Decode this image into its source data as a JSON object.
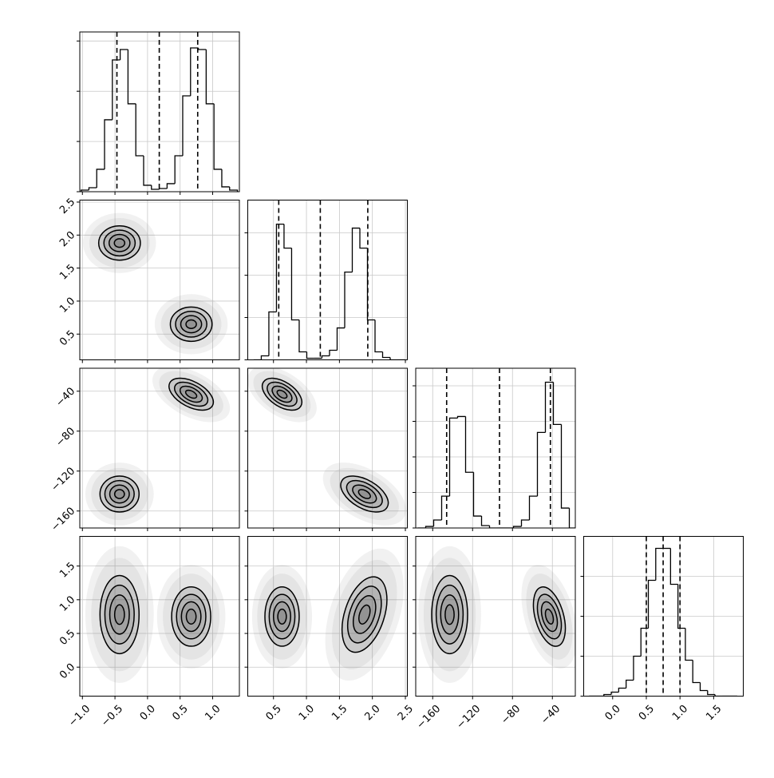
{
  "chart_data": {
    "type": "corner",
    "grid": true,
    "sigma_levels": [
      0.5,
      1,
      1.5,
      2
    ],
    "params": [
      {
        "lim": [
          -1.04,
          1.41
        ],
        "ticks": [
          {
            "value": -1,
            "label": "−1.0"
          },
          {
            "value": -0.5,
            "label": "−0.5"
          },
          {
            "value": 0,
            "label": "0.0"
          },
          0.5,
          {
            "value": 1,
            "label": "1.0"
          }
        ],
        "quantiles": [
          -0.47,
          0.18,
          0.77
        ],
        "hist": {
          "bins": [
            -1.02,
            -0.9,
            -0.78,
            -0.66,
            -0.54,
            -0.42,
            -0.3,
            -0.18,
            -0.06,
            0.06,
            0.18,
            0.3,
            0.42,
            0.54,
            0.66,
            0.78,
            0.9,
            1.02,
            1.14,
            1.26,
            1.38
          ],
          "counts": [
            16,
            40,
            223,
            716,
            1312,
            1415,
            875,
            358,
            64,
            24,
            32,
            80,
            358,
            954,
            1431,
            1415,
            875,
            223,
            48,
            16
          ],
          "ylim": [
            0,
            1590
          ],
          "yticks": [
            0,
            500,
            1000,
            1500
          ]
        }
      },
      {
        "lim": [
          0.11,
          2.53
        ],
        "ticks": [
          0.5,
          {
            "value": 1,
            "label": "1.0"
          },
          1.5,
          {
            "value": 2,
            "label": "2.0"
          },
          2.5
        ],
        "quantiles": [
          0.58,
          1.21,
          1.93
        ],
        "hist": {
          "bins": [
            0.2,
            0.315,
            0.43,
            0.545,
            0.66,
            0.775,
            0.89,
            1.005,
            1.12,
            1.235,
            1.35,
            1.465,
            1.58,
            1.695,
            1.81,
            1.925,
            2.04,
            2.155,
            2.27,
            2.385,
            2.5
          ],
          "counts": [
            0,
            47,
            566,
            1603,
            1320,
            472,
            94,
            19,
            19,
            47,
            113,
            377,
            1037,
            1556,
            1320,
            472,
            94,
            28,
            0,
            0
          ],
          "ylim": [
            0,
            1887
          ],
          "yticks": [
            0,
            500,
            1000,
            1500
          ]
        }
      },
      {
        "lim": [
          -177,
          -17
        ],
        "ticks": [
          {
            "value": -160,
            "label": "−160"
          },
          {
            "value": -120,
            "label": "−120"
          },
          {
            "value": -80,
            "label": "−80"
          },
          {
            "value": -40,
            "label": "−40"
          }
        ],
        "quantiles": [
          -146,
          -93,
          -42
        ],
        "hist": {
          "bins": [
            -175,
            -167,
            -159,
            -151,
            -143,
            -135,
            -127,
            -119,
            -111,
            -103,
            -95,
            -87,
            -79,
            -71,
            -63,
            -55,
            -47,
            -39,
            -31,
            -23,
            -15
          ],
          "counts": [
            0,
            22,
            112,
            448,
            1546,
            1568,
            784,
            168,
            34,
            0,
            0,
            0,
            22,
            112,
            448,
            1344,
            2050,
            1456,
            280,
            0
          ],
          "ylim": [
            0,
            2247
          ],
          "yticks": [
            0,
            500,
            1000,
            1500,
            2000
          ]
        }
      },
      {
        "lim": [
          -0.43,
          1.94
        ],
        "ticks": [
          {
            "value": 0,
            "label": "0.0"
          },
          0.5,
          {
            "value": 1,
            "label": "1.0"
          },
          1.5
        ],
        "quantiles": [
          0.5,
          0.75,
          1.0
        ],
        "hist": {
          "bins": [
            -0.35,
            -0.24,
            -0.13,
            -0.02,
            0.09,
            0.2,
            0.31,
            0.42,
            0.53,
            0.64,
            0.75,
            0.86,
            0.97,
            1.08,
            1.19,
            1.3,
            1.41,
            1.52,
            1.63,
            1.74,
            1.85
          ],
          "counts": [
            0,
            0,
            20,
            50,
            100,
            200,
            500,
            850,
            1450,
            1850,
            1850,
            1400,
            850,
            450,
            170,
            70,
            20,
            0,
            0,
            0
          ],
          "ylim": [
            0,
            2000
          ],
          "yticks": [
            0,
            500,
            1000,
            1500
          ]
        }
      }
    ],
    "panels": [
      {
        "x": 0,
        "y": 1,
        "blobs": [
          {
            "x": -0.43,
            "y": 1.88,
            "sx": 0.16,
            "sy": 0.13,
            "rho": 0
          },
          {
            "x": 0.67,
            "y": 0.65,
            "sx": 0.16,
            "sy": 0.13,
            "rho": 0
          }
        ]
      },
      {
        "x": 0,
        "y": 2,
        "blobs": [
          {
            "x": -0.43,
            "y": -143,
            "sx": 0.15,
            "sy": 9,
            "rho": 0
          },
          {
            "x": 0.67,
            "y": -43,
            "sx": 0.17,
            "sy": 8,
            "rho": -0.5
          }
        ]
      },
      {
        "x": 1,
        "y": 2,
        "blobs": [
          {
            "x": 0.63,
            "y": -43,
            "sx": 0.15,
            "sy": 8,
            "rho": -0.5
          },
          {
            "x": 1.88,
            "y": -143,
            "sx": 0.18,
            "sy": 9,
            "rho": -0.5
          }
        ]
      },
      {
        "x": 0,
        "y": 3,
        "blobs": [
          {
            "x": -0.43,
            "y": 0.78,
            "sx": 0.15,
            "sy": 0.29,
            "rho": 0
          },
          {
            "x": 0.67,
            "y": 0.75,
            "sx": 0.15,
            "sy": 0.22,
            "rho": 0
          }
        ]
      },
      {
        "x": 1,
        "y": 3,
        "blobs": [
          {
            "x": 0.63,
            "y": 0.75,
            "sx": 0.13,
            "sy": 0.22,
            "rho": 0
          },
          {
            "x": 1.88,
            "y": 0.78,
            "sx": 0.17,
            "sy": 0.28,
            "rho": 0.4
          }
        ]
      },
      {
        "x": 2,
        "y": 3,
        "blobs": [
          {
            "x": -143,
            "y": 0.78,
            "sx": 9,
            "sy": 0.29,
            "rho": 0
          },
          {
            "x": -43,
            "y": 0.75,
            "sx": 8,
            "sy": 0.22,
            "rho": -0.4
          }
        ]
      }
    ]
  }
}
